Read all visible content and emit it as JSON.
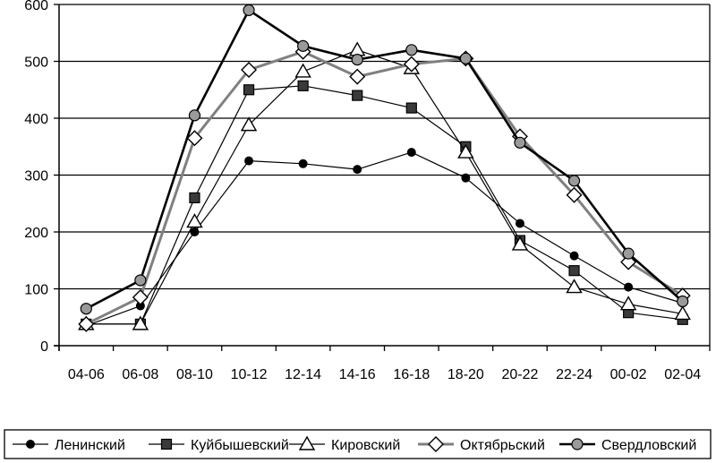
{
  "chart_data": {
    "type": "line",
    "title": "",
    "xlabel": "",
    "ylabel": "",
    "categories": [
      "04-06",
      "06-08",
      "08-10",
      "10-12",
      "12-14",
      "14-16",
      "16-18",
      "18-20",
      "20-22",
      "22-24",
      "00-02",
      "02-04"
    ],
    "ylim": [
      0,
      600
    ],
    "yticks": [
      0,
      100,
      200,
      300,
      400,
      500,
      600
    ],
    "grid": "horizontal",
    "legend_position": "bottom",
    "series": [
      {
        "name": "Ленинский",
        "marker": "small-circle",
        "color": "#000000",
        "values": [
          35,
          70,
          200,
          325,
          320,
          310,
          340,
          295,
          215,
          158,
          103,
          75
        ]
      },
      {
        "name": "Куйбышевский",
        "marker": "square",
        "color": "#000000",
        "values": [
          38,
          38,
          260,
          450,
          457,
          440,
          418,
          350,
          185,
          132,
          58,
          46
        ]
      },
      {
        "name": "Кировский",
        "marker": "triangle",
        "color": "#000000",
        "values": [
          38,
          38,
          218,
          388,
          482,
          520,
          488,
          340,
          178,
          103,
          73,
          56
        ]
      },
      {
        "name": "Октябрьский",
        "marker": "diamond",
        "color": "#808080",
        "values": [
          38,
          85,
          365,
          485,
          517,
          473,
          495,
          505,
          368,
          265,
          147,
          88
        ]
      },
      {
        "name": "Свердловский",
        "marker": "gray-circle",
        "color": "#000000",
        "values": [
          65,
          115,
          405,
          590,
          527,
          503,
          520,
          505,
          357,
          290,
          162,
          78
        ]
      }
    ]
  }
}
